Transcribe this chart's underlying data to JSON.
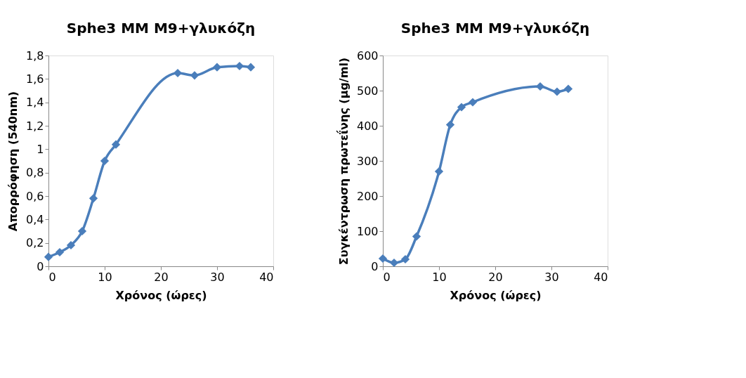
{
  "chart_data": [
    {
      "type": "line",
      "title": "Sphe3 MM M9+γλυκόζη",
      "xlabel": "Χρόνος (ώρες)",
      "ylabel": "Απορρόφηση (540nm)",
      "marker": "diamond",
      "line_style": "solid",
      "grid": false,
      "x": [
        0,
        2,
        4,
        6,
        8,
        10,
        12,
        23,
        26,
        30,
        34,
        36
      ],
      "series": [
        {
          "color": "#4a7ebb",
          "values": [
            0.08,
            0.12,
            0.18,
            0.3,
            0.58,
            0.9,
            1.04,
            1.65,
            1.63,
            1.7,
            1.71,
            1.7
          ]
        }
      ],
      "xlim": [
        0,
        40
      ],
      "xticks": [
        0,
        10,
        20,
        30,
        40
      ],
      "ylim": [
        0,
        1.8
      ],
      "yticks": [
        0,
        {
          "value": 0.2,
          "label": "0,2"
        },
        {
          "value": 0.4,
          "label": "0,4"
        },
        {
          "value": 0.6,
          "label": "0,6"
        },
        {
          "value": 0.8,
          "label": "0,8"
        },
        1,
        {
          "value": 1.2,
          "label": "1,2"
        },
        {
          "value": 1.4,
          "label": "1,4"
        },
        {
          "value": 1.6,
          "label": "1,6"
        },
        {
          "value": 1.8,
          "label": "1,8"
        }
      ]
    },
    {
      "type": "line",
      "title": "Sphe3 MM M9+γλυκόζη",
      "xlabel": "Χρόνος (ώρες)",
      "ylabel": "Συγκέντρωση πρωτεΐνης (μg/ml)",
      "marker": "diamond",
      "line_style": "solid",
      "grid": false,
      "x": [
        0,
        2,
        4,
        6,
        10,
        12,
        14,
        16,
        28,
        31,
        33
      ],
      "series": [
        {
          "color": "#4a7ebb",
          "values": [
            22,
            10,
            20,
            85,
            270,
            403,
            453,
            467,
            512,
            497,
            505
          ]
        }
      ],
      "xlim": [
        0,
        40
      ],
      "xticks": [
        0,
        10,
        20,
        30,
        40
      ],
      "ylim": [
        0,
        600
      ],
      "yticks": [
        0,
        100,
        200,
        300,
        400,
        500,
        600
      ]
    }
  ]
}
